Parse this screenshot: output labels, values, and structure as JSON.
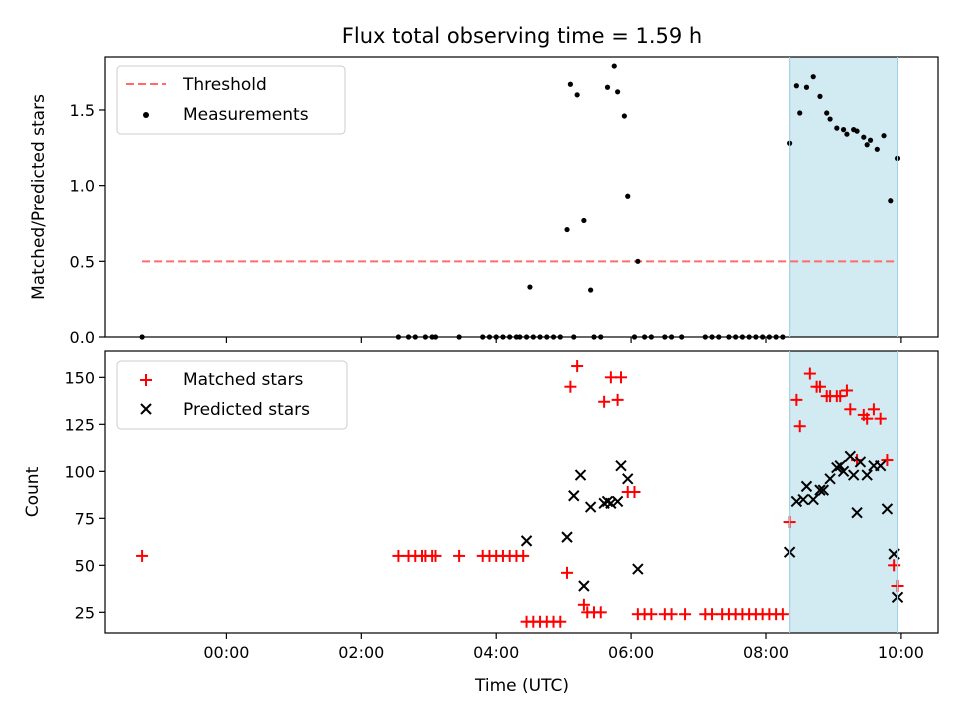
{
  "title": "Flux total observing time = 1.59 h",
  "xlabel": "Time (UTC)",
  "x_tick_labels": [
    "00:00",
    "02:00",
    "04:00",
    "06:00",
    "08:00",
    "10:00"
  ],
  "colors": {
    "threshold": "#ff6b6b",
    "measurements": "#000000",
    "matched": "#ff0000",
    "predicted": "#000000",
    "span": "#add8e6"
  },
  "chart_data": [
    {
      "type": "scatter",
      "panel": "top",
      "ylabel": "Matched/Predicted stars",
      "xlim": [
        -1.8,
        10.55
      ],
      "ylim": [
        0,
        1.85
      ],
      "y_ticks": [
        0.0,
        0.5,
        1.0,
        1.5
      ],
      "y_tick_labels": [
        "0.0",
        "0.5",
        "1.0",
        "1.5"
      ],
      "legend": "upper-left",
      "threshold": {
        "name": "Threshold",
        "y": 0.5,
        "x": [
          -1.25,
          9.95
        ],
        "style": "dashed"
      },
      "highlight_span": [
        8.35,
        9.95
      ],
      "series": [
        {
          "name": "Measurements",
          "points": [
            [
              -1.25,
              0.0
            ],
            [
              2.55,
              0.0
            ],
            [
              2.7,
              0.0
            ],
            [
              2.8,
              0.0
            ],
            [
              2.95,
              0.0
            ],
            [
              3.05,
              0.0
            ],
            [
              3.1,
              0.0
            ],
            [
              3.45,
              0.0
            ],
            [
              3.8,
              0.0
            ],
            [
              3.9,
              0.0
            ],
            [
              4.0,
              0.0
            ],
            [
              4.1,
              0.0
            ],
            [
              4.2,
              0.0
            ],
            [
              4.3,
              0.0
            ],
            [
              4.35,
              0.0
            ],
            [
              4.45,
              0.0
            ],
            [
              4.5,
              0.33
            ],
            [
              4.55,
              0.0
            ],
            [
              4.65,
              0.0
            ],
            [
              4.75,
              0.0
            ],
            [
              4.85,
              0.0
            ],
            [
              4.95,
              0.0
            ],
            [
              5.05,
              0.71
            ],
            [
              5.1,
              1.67
            ],
            [
              5.15,
              0.0
            ],
            [
              5.2,
              1.6
            ],
            [
              5.3,
              0.77
            ],
            [
              5.4,
              0.31
            ],
            [
              5.45,
              0.0
            ],
            [
              5.55,
              0.0
            ],
            [
              5.65,
              1.65
            ],
            [
              5.75,
              1.79
            ],
            [
              5.8,
              1.62
            ],
            [
              5.9,
              1.46
            ],
            [
              5.95,
              0.93
            ],
            [
              6.05,
              0.0
            ],
            [
              6.1,
              0.5
            ],
            [
              6.2,
              0.0
            ],
            [
              6.3,
              0.0
            ],
            [
              6.5,
              0.0
            ],
            [
              6.6,
              0.0
            ],
            [
              6.75,
              0.0
            ],
            [
              7.1,
              0.0
            ],
            [
              7.2,
              0.0
            ],
            [
              7.3,
              0.0
            ],
            [
              7.45,
              0.0
            ],
            [
              7.55,
              0.0
            ],
            [
              7.65,
              0.0
            ],
            [
              7.75,
              0.0
            ],
            [
              7.85,
              0.0
            ],
            [
              7.95,
              0.0
            ],
            [
              8.05,
              0.0
            ],
            [
              8.15,
              0.0
            ],
            [
              8.25,
              0.0
            ],
            [
              8.35,
              1.28
            ],
            [
              8.45,
              1.66
            ],
            [
              8.5,
              1.48
            ],
            [
              8.6,
              1.65
            ],
            [
              8.7,
              1.72
            ],
            [
              8.8,
              1.59
            ],
            [
              8.9,
              1.48
            ],
            [
              8.95,
              1.44
            ],
            [
              9.05,
              1.38
            ],
            [
              9.15,
              1.37
            ],
            [
              9.2,
              1.34
            ],
            [
              9.3,
              1.37
            ],
            [
              9.35,
              1.36
            ],
            [
              9.45,
              1.32
            ],
            [
              9.5,
              1.27
            ],
            [
              9.55,
              1.3
            ],
            [
              9.65,
              1.24
            ],
            [
              9.75,
              1.33
            ],
            [
              9.85,
              0.9
            ],
            [
              9.95,
              1.18
            ]
          ]
        }
      ]
    },
    {
      "type": "scatter",
      "panel": "bottom",
      "ylabel": "Count",
      "xlim": [
        -1.8,
        10.55
      ],
      "ylim": [
        14,
        164
      ],
      "y_ticks": [
        25,
        50,
        75,
        100,
        125,
        150
      ],
      "y_tick_labels": [
        "25",
        "50",
        "75",
        "100",
        "125",
        "150"
      ],
      "legend": "upper-left",
      "highlight_span": [
        8.35,
        9.95
      ],
      "series": [
        {
          "name": "Matched stars",
          "marker": "plus",
          "points": [
            [
              -1.25,
              55
            ],
            [
              2.55,
              55
            ],
            [
              2.7,
              55
            ],
            [
              2.8,
              55
            ],
            [
              2.9,
              55
            ],
            [
              2.95,
              55
            ],
            [
              3.05,
              55
            ],
            [
              3.1,
              55
            ],
            [
              3.45,
              55
            ],
            [
              3.8,
              55
            ],
            [
              3.9,
              55
            ],
            [
              4.0,
              55
            ],
            [
              4.1,
              55
            ],
            [
              4.2,
              55
            ],
            [
              4.3,
              55
            ],
            [
              4.4,
              55
            ],
            [
              4.45,
              20
            ],
            [
              4.55,
              20
            ],
            [
              4.65,
              20
            ],
            [
              4.75,
              20
            ],
            [
              4.85,
              20
            ],
            [
              4.95,
              20
            ],
            [
              5.05,
              46
            ],
            [
              5.1,
              145
            ],
            [
              5.2,
              156
            ],
            [
              5.3,
              29
            ],
            [
              5.35,
              25
            ],
            [
              5.45,
              25
            ],
            [
              5.55,
              25
            ],
            [
              5.6,
              137
            ],
            [
              5.7,
              150
            ],
            [
              5.8,
              138
            ],
            [
              5.85,
              150
            ],
            [
              5.95,
              89
            ],
            [
              6.05,
              89
            ],
            [
              6.1,
              24
            ],
            [
              6.2,
              24
            ],
            [
              6.3,
              24
            ],
            [
              6.5,
              24
            ],
            [
              6.6,
              24
            ],
            [
              6.8,
              24
            ],
            [
              7.1,
              24
            ],
            [
              7.2,
              24
            ],
            [
              7.35,
              24
            ],
            [
              7.45,
              24
            ],
            [
              7.55,
              24
            ],
            [
              7.65,
              24
            ],
            [
              7.75,
              24
            ],
            [
              7.85,
              24
            ],
            [
              7.95,
              24
            ],
            [
              8.05,
              24
            ],
            [
              8.15,
              24
            ],
            [
              8.25,
              24
            ],
            [
              8.35,
              73
            ],
            [
              8.45,
              138
            ],
            [
              8.5,
              124
            ],
            [
              8.65,
              152
            ],
            [
              8.75,
              145
            ],
            [
              8.8,
              145
            ],
            [
              8.9,
              140
            ],
            [
              8.95,
              140
            ],
            [
              9.05,
              140
            ],
            [
              9.1,
              140
            ],
            [
              9.2,
              143
            ],
            [
              9.25,
              133
            ],
            [
              9.35,
              106
            ],
            [
              9.45,
              130
            ],
            [
              9.5,
              128
            ],
            [
              9.6,
              133
            ],
            [
              9.7,
              128
            ],
            [
              9.8,
              106
            ],
            [
              9.9,
              50
            ],
            [
              9.95,
              39
            ]
          ]
        },
        {
          "name": "Predicted stars",
          "marker": "x",
          "points": [
            [
              4.45,
              63
            ],
            [
              5.05,
              65
            ],
            [
              5.15,
              87
            ],
            [
              5.25,
              98
            ],
            [
              5.3,
              39
            ],
            [
              5.4,
              81
            ],
            [
              5.6,
              83
            ],
            [
              5.65,
              84
            ],
            [
              5.7,
              83
            ],
            [
              5.8,
              84
            ],
            [
              5.85,
              103
            ],
            [
              5.95,
              96
            ],
            [
              6.1,
              48
            ],
            [
              8.35,
              57
            ],
            [
              8.45,
              84
            ],
            [
              8.55,
              85
            ],
            [
              8.6,
              92
            ],
            [
              8.7,
              85
            ],
            [
              8.8,
              90
            ],
            [
              8.85,
              90
            ],
            [
              8.95,
              96
            ],
            [
              9.05,
              102
            ],
            [
              9.1,
              103
            ],
            [
              9.15,
              100
            ],
            [
              9.25,
              108
            ],
            [
              9.3,
              98
            ],
            [
              9.35,
              78
            ],
            [
              9.4,
              105
            ],
            [
              9.5,
              98
            ],
            [
              9.6,
              103
            ],
            [
              9.7,
              103
            ],
            [
              9.8,
              80
            ],
            [
              9.9,
              56
            ],
            [
              9.95,
              33
            ]
          ]
        }
      ]
    }
  ]
}
